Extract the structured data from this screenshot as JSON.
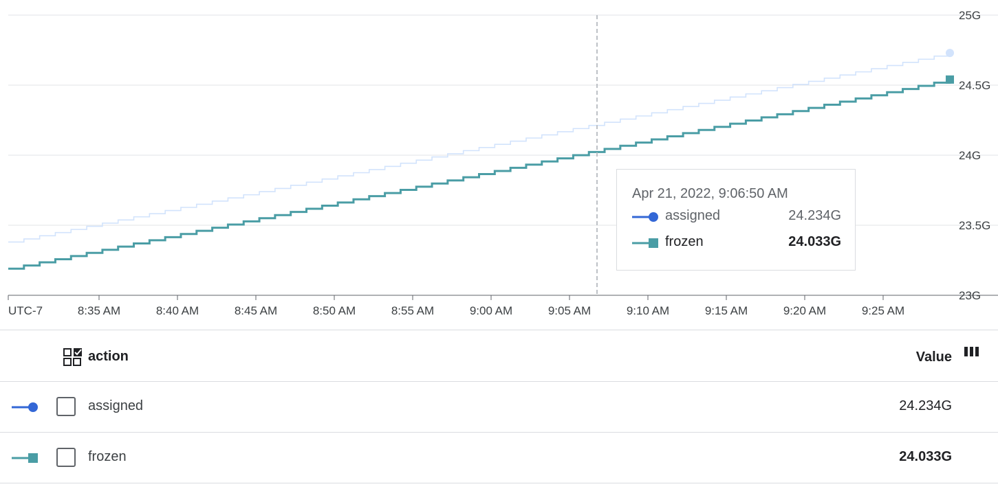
{
  "chart_data": {
    "type": "line",
    "timezone_label": "UTC-7",
    "x_ticks": [
      "8:35 AM",
      "8:40 AM",
      "8:45 AM",
      "8:50 AM",
      "8:55 AM",
      "9:00 AM",
      "9:05 AM",
      "9:10 AM",
      "9:15 AM",
      "9:20 AM",
      "9:25 AM"
    ],
    "y_ticks": [
      "25G",
      "24.5G",
      "24G",
      "23.5G",
      "23G"
    ],
    "ylim": [
      23,
      25
    ],
    "x_range_minutes": [
      8.5,
      9.482
    ],
    "series": [
      {
        "name": "assigned",
        "color": "#d2e3fc",
        "marker": "circle",
        "start": 23.38,
        "end": 24.73
      },
      {
        "name": "frozen",
        "color": "#4a9da5",
        "marker": "square",
        "start": 23.19,
        "end": 24.54
      }
    ],
    "grid": true,
    "hover_time": "9:06:50 AM"
  },
  "tooltip": {
    "timestamp": "Apr 21, 2022, 9:06:50 AM",
    "rows": [
      {
        "name": "assigned",
        "value": "24.234G"
      },
      {
        "name": "frozen",
        "value": "24.033G"
      }
    ]
  },
  "legend_table": {
    "header_label": "action",
    "value_header": "Value",
    "rows": [
      {
        "name": "assigned",
        "value": "24.234G"
      },
      {
        "name": "frozen",
        "value": "24.033G"
      }
    ]
  },
  "colors": {
    "assigned_marker": "#3367d6",
    "frozen": "#4a9da5",
    "grid": "#e0e3e7"
  }
}
